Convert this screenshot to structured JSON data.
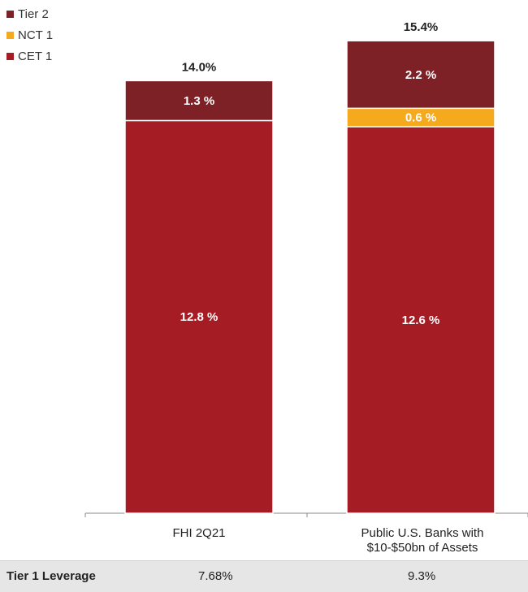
{
  "chart_data": {
    "type": "bar",
    "stacked": true,
    "categories": [
      "FHI 2Q21",
      "Public U.S. Banks with\n$10-$50bn of Assets"
    ],
    "series": [
      {
        "name": "CET 1",
        "values": [
          12.8,
          12.6
        ],
        "labels": [
          "12.8 %",
          "12.6 %"
        ],
        "color": "#a51c24"
      },
      {
        "name": "NCT 1",
        "values": [
          0,
          0.6
        ],
        "labels": [
          "",
          "0.6 %"
        ],
        "color": "#f5a91c"
      },
      {
        "name": "Tier 2",
        "values": [
          1.3,
          2.2
        ],
        "labels": [
          "1.3 %",
          "2.2 %"
        ],
        "color": "#7d2126"
      }
    ],
    "totals": [
      "14.0%",
      "15.4%"
    ],
    "ylim": [
      0,
      16.2
    ],
    "legend": {
      "position": "top-left",
      "order": [
        "Tier 2",
        "NCT 1",
        "CET 1"
      ]
    },
    "grid": false
  },
  "table": {
    "label": "Tier 1 Leverage",
    "values": [
      "7.68%",
      "9.3%"
    ]
  }
}
